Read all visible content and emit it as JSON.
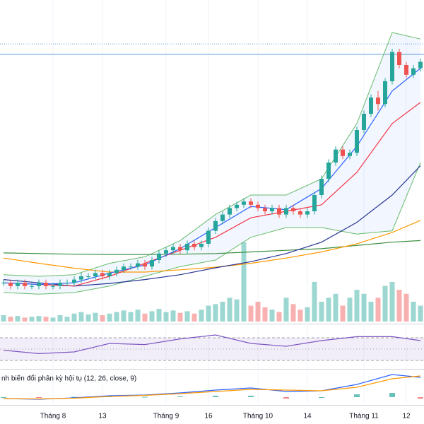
{
  "chart_data": {
    "type": "candlestick",
    "up_color": "#26a69a",
    "down_color": "#ef5350",
    "ylim": [
      0,
      100
    ],
    "candles": {
      "open": [
        13,
        13,
        12,
        13,
        12,
        12,
        13,
        12,
        12,
        13,
        13,
        14,
        15,
        15,
        16,
        15,
        16,
        17,
        18,
        18,
        19,
        18,
        20,
        22,
        23,
        24,
        23,
        25,
        24,
        25,
        29,
        32,
        34,
        36,
        37,
        38,
        37,
        36,
        35,
        36,
        34,
        36,
        35,
        34,
        35,
        40,
        45,
        50,
        54,
        52,
        53,
        60,
        65,
        70,
        68,
        75,
        84,
        80,
        77,
        79
      ],
      "high": [
        14,
        14,
        14,
        14,
        13,
        14,
        14,
        13,
        14,
        14,
        15,
        16,
        16,
        17,
        17,
        17,
        18,
        19,
        19,
        20,
        20,
        21,
        23,
        24,
        25,
        25,
        26,
        26,
        26,
        30,
        33,
        35,
        37,
        38,
        39,
        39,
        38,
        37,
        37,
        37,
        37,
        37,
        36,
        36,
        41,
        46,
        51,
        55,
        55,
        54,
        61,
        66,
        71,
        72,
        76,
        85,
        85,
        81,
        80,
        82
      ],
      "low": [
        12,
        11,
        11,
        11,
        11,
        11,
        11,
        11,
        11,
        12,
        12,
        13,
        14,
        14,
        14,
        14,
        15,
        16,
        17,
        17,
        17,
        17,
        19,
        21,
        22,
        22,
        22,
        23,
        23,
        24,
        28,
        31,
        33,
        35,
        36,
        36,
        35,
        34,
        34,
        33,
        33,
        34,
        33,
        33,
        34,
        39,
        44,
        49,
        51,
        51,
        52,
        59,
        64,
        66,
        67,
        74,
        79,
        76,
        76,
        78
      ],
      "close": [
        13,
        12,
        13,
        12,
        12,
        13,
        12,
        12,
        13,
        13,
        14,
        15,
        15,
        16,
        15,
        16,
        17,
        18,
        18,
        19,
        18,
        20,
        22,
        23,
        24,
        23,
        25,
        24,
        25,
        29,
        32,
        34,
        36,
        37,
        38,
        37,
        36,
        35,
        36,
        34,
        36,
        35,
        34,
        35,
        40,
        45,
        50,
        54,
        52,
        53,
        60,
        65,
        70,
        68,
        75,
        84,
        80,
        77,
        79,
        81
      ]
    },
    "price_lines": [
      {
        "value": 83.3,
        "style": "solid",
        "color": "#5b9bd5"
      },
      {
        "value": 86.5,
        "style": "dotted",
        "color": "#5b9bd5"
      }
    ],
    "xticks": [
      {
        "value": 7,
        "label": "Tháng 8"
      },
      {
        "value": 14,
        "label": "13"
      },
      {
        "value": 23,
        "label": "Tháng 9"
      },
      {
        "value": 29,
        "label": "16"
      },
      {
        "value": 36,
        "label": "Tháng 10"
      },
      {
        "value": 43,
        "label": "14"
      },
      {
        "value": 51,
        "label": "Tháng 11"
      },
      {
        "value": 57,
        "label": "12"
      }
    ],
    "volume": {
      "ylim": [
        0,
        107
      ],
      "values": [
        8,
        6,
        7,
        5,
        6,
        7,
        6,
        5,
        8,
        6,
        10,
        12,
        9,
        11,
        8,
        10,
        12,
        14,
        12,
        15,
        10,
        13,
        16,
        12,
        14,
        11,
        13,
        10,
        15,
        20,
        22,
        25,
        30,
        28,
        100,
        20,
        25,
        18,
        15,
        12,
        30,
        22,
        15,
        18,
        50,
        25,
        30,
        35,
        20,
        30,
        40,
        35,
        25,
        30,
        45,
        50,
        40,
        35,
        25,
        20
      ]
    },
    "overlay_x": [
      0,
      5,
      10,
      15,
      20,
      25,
      30,
      35,
      40,
      45,
      50,
      55,
      59
    ],
    "band": {
      "color": "#66bb6a",
      "fill": "rgba(41,98,255,0.06)",
      "upper": [
        15.5,
        15,
        15.5,
        19,
        21,
        26,
        34,
        40,
        40,
        45,
        62,
        90,
        88
      ],
      "lower": [
        10,
        9.5,
        10,
        12,
        15,
        18,
        20,
        27,
        30,
        30,
        28,
        29,
        50
      ]
    },
    "overlays": [
      {
        "color": "#388e3c",
        "values": [
          22.2,
          22,
          21.8,
          21.7,
          21.7,
          21.8,
          22,
          22.5,
          23,
          23.5,
          24.5,
          25.5,
          26
        ]
      },
      {
        "color": "#ff9800",
        "values": [
          20.6,
          19,
          17.5,
          16.3,
          16.3,
          17,
          17.8,
          19,
          20.6,
          22.5,
          25,
          28.5,
          32.2
        ]
      },
      {
        "color": "#283593",
        "values": [
          14,
          13,
          12,
          12.8,
          14,
          15.5,
          17.6,
          19.5,
          22,
          25.5,
          31.6,
          40,
          49
        ]
      },
      {
        "color": "#f23645",
        "values": [
          13,
          12.5,
          12,
          15,
          19,
          23,
          27,
          33,
          35,
          37,
          47,
          62,
          68.5
        ]
      },
      {
        "color": "#2962ff",
        "values": [
          13,
          12.5,
          13,
          16,
          18.5,
          23.5,
          30,
          36.5,
          35.5,
          42,
          55,
          72,
          79
        ]
      }
    ],
    "rsi": {
      "color": "#7e57c2",
      "ylim": [
        17.5,
        92.5
      ],
      "levels": [
        30,
        50,
        70
      ],
      "values": [
        48,
        42,
        45,
        60,
        58,
        68,
        75,
        60,
        55,
        65,
        72,
        72,
        65
      ]
    },
    "macd": {
      "title": "nh biến đổi phân kỳ hội tụ (12, 26, close, 9)",
      "ylim": [
        -10,
        37
      ],
      "line_color": "#2962ff",
      "signal_color": "#ff9800",
      "line": [
        -2,
        -3,
        -1,
        2,
        3,
        6,
        10,
        13,
        8,
        9,
        18,
        32,
        28
      ],
      "signal": [
        -2,
        -2.5,
        -1.5,
        1,
        2.5,
        5,
        8,
        11,
        10,
        9,
        14,
        26,
        30
      ],
      "histogram": [
        0,
        -0.5,
        0.5,
        1,
        0.5,
        1,
        2,
        2,
        -2,
        0,
        4,
        6,
        -2
      ]
    }
  }
}
